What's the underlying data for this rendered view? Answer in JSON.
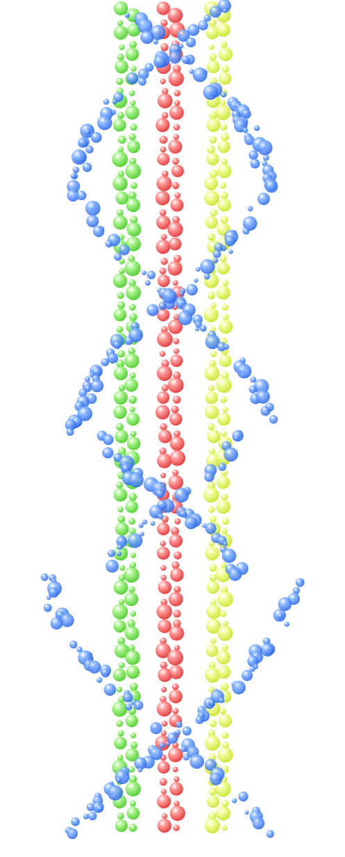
{
  "artwork": {
    "subject": "bubble-helix",
    "columns": [
      {
        "name": "green-bead-column",
        "color": "#5ee03a"
      },
      {
        "name": "red-bead-column",
        "color": "#f03c3c"
      },
      {
        "name": "yellow-bead-column",
        "color": "#d8f23a"
      }
    ],
    "helix_color": "#3f7ff0"
  }
}
